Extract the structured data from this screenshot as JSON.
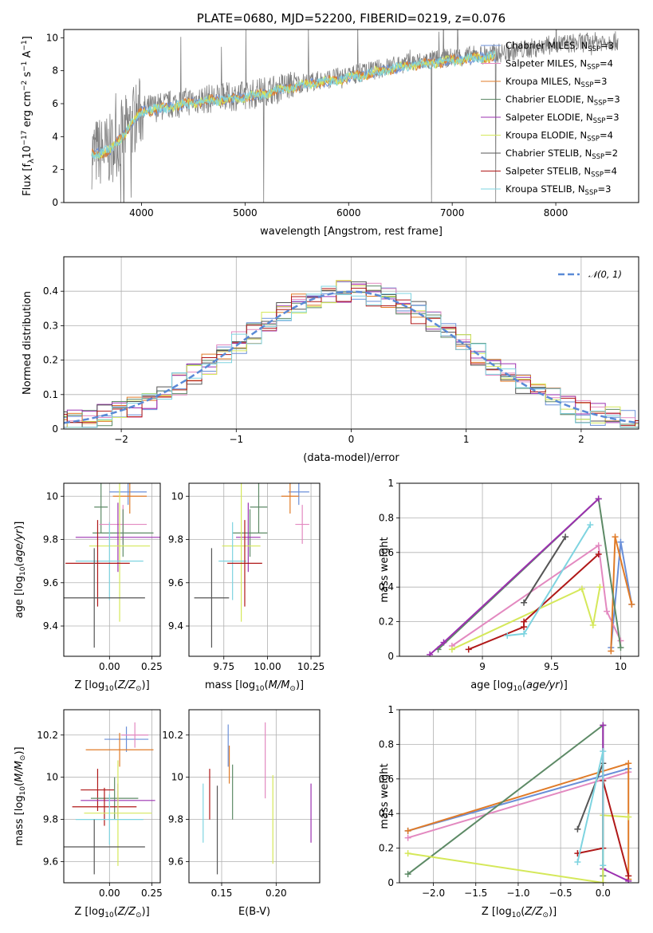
{
  "colors": {
    "Chabrier MILES": "#6a8fd8",
    "Salpeter MILES": "#e389c0",
    "Kroupa MILES": "#e07b28",
    "Chabrier ELODIE": "#5d8a66",
    "Salpeter ELODIE": "#9c30b0",
    "Kroupa ELODIE": "#d5e85a",
    "Chabrier STELIB": "#555555",
    "Salpeter STELIB": "#b01818",
    "Kroupa STELIB": "#7ed4e0"
  },
  "chart_data": [
    {
      "id": "spectrum",
      "type": "line",
      "title": "PLATE=0680, MJD=52200, FIBERID=0219, z=0.076",
      "xlabel": "wavelength [Angstrom, rest frame]",
      "ylabel": "Flux [fλ10⁻¹⁷ erg cm⁻² s⁻¹ A⁻¹]",
      "xlim": [
        3250,
        8800
      ],
      "ylim": [
        0,
        10.5
      ],
      "xticks": [
        4000,
        5000,
        6000,
        7000,
        8000
      ],
      "yticks": [
        0,
        2,
        4,
        6,
        8,
        10
      ],
      "data_color": "#808080",
      "data_continuum": [
        [
          3520,
          3.0
        ],
        [
          3700,
          3.2
        ],
        [
          3900,
          4.8
        ],
        [
          4000,
          5.6
        ],
        [
          4500,
          6.2
        ],
        [
          5000,
          6.5
        ],
        [
          5500,
          7.2
        ],
        [
          6000,
          7.7
        ],
        [
          6500,
          8.4
        ],
        [
          7000,
          8.8
        ],
        [
          7500,
          9.1
        ],
        [
          8000,
          9.6
        ],
        [
          8500,
          9.8
        ],
        [
          8600,
          9.8
        ]
      ],
      "data_dips": [
        [
          3800,
          0.0
        ],
        [
          3830,
          0.0
        ],
        [
          3900,
          0.3
        ],
        [
          5180,
          0.0
        ],
        [
          6800,
          0.0
        ],
        [
          7420,
          0.0
        ]
      ],
      "model_color_list": [
        "#6a8fd8",
        "#e07b28",
        "#d5e85a",
        "#7ed4e0"
      ],
      "model_range": [
        3520,
        7420
      ],
      "legend": [
        {
          "label": "Chabrier MILES, N",
          "sub": "SSP",
          "tail": "=3"
        },
        {
          "label": "Salpeter MILES, N",
          "sub": "SSP",
          "tail": "=4"
        },
        {
          "label": "Kroupa MILES, N",
          "sub": "SSP",
          "tail": "=3"
        },
        {
          "label": "Chabrier ELODIE, N",
          "sub": "SSP",
          "tail": "=3"
        },
        {
          "label": "Salpeter ELODIE, N",
          "sub": "SSP",
          "tail": "=3"
        },
        {
          "label": "Kroupa ELODIE, N",
          "sub": "SSP",
          "tail": "=4"
        },
        {
          "label": "Chabrier STELIB, N",
          "sub": "SSP",
          "tail": "=2"
        },
        {
          "label": "Salpeter STELIB, N",
          "sub": "SSP",
          "tail": "=4"
        },
        {
          "label": "Kroupa STELIB, N",
          "sub": "SSP",
          "tail": "=3"
        }
      ],
      "legend_placement": "right"
    },
    {
      "id": "residuals",
      "type": "histogram",
      "xlabel": "(data-model)/error",
      "ylabel": "Normed distribution",
      "xlim": [
        -2.5,
        2.5
      ],
      "ylim": [
        0,
        0.5
      ],
      "xticks": [
        -2,
        -1,
        0,
        1,
        2
      ],
      "yticks": [
        0.0,
        0.1,
        0.2,
        0.3,
        0.4
      ],
      "grid": true,
      "gaussian_label": "𝒩(0, 1)",
      "gaussian_color": "#5a8ad6",
      "legend_placement": "top-right"
    },
    {
      "id": "age-vs-Z",
      "type": "errorbar",
      "xlabel": "Z [log₁₀(Z/Z⊙)]",
      "ylabel": "age  [log₁₀(age/yr)]",
      "xlim": [
        -0.27,
        0.3
      ],
      "ylim": [
        9.26,
        10.06
      ],
      "xticks": [
        0.0,
        0.25
      ],
      "xticklabels": [
        "0.00",
        "0.25"
      ],
      "yticks": [
        9.4,
        9.6,
        9.8,
        10.0
      ],
      "grid": true,
      "points": [
        {
          "series": "Chabrier MILES",
          "x": 0.11,
          "xerr": 0.11,
          "y": 10.02,
          "yerr": 0.06
        },
        {
          "series": "Kroupa MILES",
          "x": 0.12,
          "xerr": 0.1,
          "y": 10.0,
          "yerr": 0.08
        },
        {
          "series": "Chabrier ELODIE",
          "x": -0.05,
          "xerr": 0.04,
          "y": 9.95,
          "yerr": 0.12
        },
        {
          "series": "Salpeter MILES",
          "x": 0.08,
          "xerr": 0.14,
          "y": 9.87,
          "yerr": 0.09
        },
        {
          "series": "Chabrier ELODIE",
          "x": 0.08,
          "xerr": 0.18,
          "y": 9.83,
          "yerr": 0.11
        },
        {
          "series": "Salpeter ELODIE",
          "x": 0.05,
          "xerr": 0.25,
          "y": 9.81,
          "yerr": 0.16
        },
        {
          "series": "Kroupa ELODIE",
          "x": 0.06,
          "xerr": 0.18,
          "y": 9.77,
          "yerr": 0.35
        },
        {
          "series": "Kroupa STELIB",
          "x": 0.0,
          "xerr": 0.2,
          "y": 9.7,
          "yerr": 0.18
        },
        {
          "series": "Salpeter STELIB",
          "x": -0.07,
          "xerr": 0.19,
          "y": 9.69,
          "yerr": 0.2
        },
        {
          "series": "Chabrier STELIB",
          "x": -0.09,
          "xerr": 0.3,
          "y": 9.53,
          "yerr": 0.23
        }
      ]
    },
    {
      "id": "age-vs-mass",
      "type": "errorbar",
      "xlabel": "mass [log₁₀(M/M⊙)]",
      "ylabel": "",
      "xlim": [
        9.55,
        10.3
      ],
      "ylim": [
        9.26,
        10.06
      ],
      "xticks": [
        9.75,
        10.0,
        10.25
      ],
      "xticklabels": [
        "9.75",
        "10.00",
        "10.25"
      ],
      "yticks": [
        9.4,
        9.6,
        9.8,
        10.0
      ],
      "grid": true,
      "points": [
        {
          "series": "Chabrier MILES",
          "x": 10.18,
          "xerr": 0.06,
          "y": 10.02,
          "yerr": 0.06
        },
        {
          "series": "Kroupa MILES",
          "x": 10.13,
          "xerr": 0.05,
          "y": 10.0,
          "yerr": 0.08
        },
        {
          "series": "Chabrier ELODIE",
          "x": 9.95,
          "xerr": 0.05,
          "y": 9.95,
          "yerr": 0.12
        },
        {
          "series": "Salpeter MILES",
          "x": 10.2,
          "xerr": 0.04,
          "y": 9.87,
          "yerr": 0.09
        },
        {
          "series": "Chabrier ELODIE",
          "x": 9.9,
          "xerr": 0.1,
          "y": 9.83,
          "yerr": 0.11
        },
        {
          "series": "Salpeter ELODIE",
          "x": 9.89,
          "xerr": 0.07,
          "y": 9.81,
          "yerr": 0.16
        },
        {
          "series": "Kroupa ELODIE",
          "x": 9.85,
          "xerr": 0.11,
          "y": 9.77,
          "yerr": 0.35
        },
        {
          "series": "Kroupa STELIB",
          "x": 9.8,
          "xerr": 0.08,
          "y": 9.7,
          "yerr": 0.18
        },
        {
          "series": "Salpeter STELIB",
          "x": 9.87,
          "xerr": 0.1,
          "y": 9.69,
          "yerr": 0.2
        },
        {
          "series": "Chabrier STELIB",
          "x": 9.68,
          "xerr": 0.1,
          "y": 9.53,
          "yerr": 0.23
        }
      ]
    },
    {
      "id": "weight-vs-age",
      "type": "line",
      "xlabel": "age  [log₁₀(age/yr)]",
      "ylabel": "mass weight",
      "xlim": [
        8.4,
        10.13
      ],
      "ylim": [
        0,
        1.0
      ],
      "xticks": [
        9.0,
        9.5,
        10.0
      ],
      "yticks": [
        0.0,
        0.2,
        0.4,
        0.6,
        0.8,
        1.0
      ],
      "grid": true,
      "series": [
        {
          "name": "Chabrier MILES",
          "x": [
            9.93,
            10.0,
            10.08
          ],
          "y": [
            0.05,
            0.66,
            0.3
          ]
        },
        {
          "name": "Salpeter MILES",
          "x": [
            8.78,
            9.84,
            9.9,
            10.0
          ],
          "y": [
            0.06,
            0.64,
            0.26,
            0.09
          ]
        },
        {
          "name": "Kroupa MILES",
          "x": [
            9.93,
            9.96,
            10.08
          ],
          "y": [
            0.03,
            0.69,
            0.3
          ]
        },
        {
          "name": "Chabrier ELODIE",
          "x": [
            8.68,
            9.84,
            10.0
          ],
          "y": [
            0.04,
            0.91,
            0.05
          ]
        },
        {
          "name": "Salpeter ELODIE",
          "x": [
            8.62,
            8.72,
            9.84
          ],
          "y": [
            0.01,
            0.08,
            0.91
          ]
        },
        {
          "name": "Kroupa ELODIE",
          "x": [
            8.78,
            9.72,
            9.8,
            9.85
          ],
          "y": [
            0.04,
            0.39,
            0.18,
            0.4
          ]
        },
        {
          "name": "Chabrier STELIB",
          "x": [
            9.3,
            9.6
          ],
          "y": [
            0.31,
            0.69
          ]
        },
        {
          "name": "Salpeter STELIB",
          "x": [
            8.9,
            9.3,
            9.3,
            9.84
          ],
          "y": [
            0.04,
            0.17,
            0.2,
            0.59
          ]
        },
        {
          "name": "Kroupa STELIB",
          "x": [
            9.18,
            9.3,
            9.78
          ],
          "y": [
            0.12,
            0.13,
            0.76
          ]
        }
      ]
    },
    {
      "id": "mass-vs-Z",
      "type": "errorbar",
      "xlabel": "Z [log₁₀(Z/Z⊙)]",
      "ylabel": "mass [log₁₀(M/M⊙)]",
      "xlim": [
        -0.27,
        0.3
      ],
      "ylim": [
        9.5,
        10.32
      ],
      "xticks": [
        0.0,
        0.25
      ],
      "xticklabels": [
        "0.00",
        "0.25"
      ],
      "yticks": [
        9.6,
        9.8,
        10.0,
        10.2
      ],
      "grid": true,
      "points": [
        {
          "series": "Chabrier MILES",
          "x": 0.1,
          "xerr": 0.13,
          "y": 10.18,
          "yerr": 0.06
        },
        {
          "series": "Salpeter MILES",
          "x": 0.15,
          "xerr": 0.08,
          "y": 10.2,
          "yerr": 0.06
        },
        {
          "series": "Kroupa MILES",
          "x": 0.06,
          "xerr": 0.2,
          "y": 10.13,
          "yerr": 0.08
        },
        {
          "series": "Salpeter STELIB",
          "x": -0.07,
          "xerr": 0.1,
          "y": 9.94,
          "yerr": 0.1
        },
        {
          "series": "Chabrier ELODIE",
          "x": 0.03,
          "xerr": 0.14,
          "y": 9.9,
          "yerr": 0.1
        },
        {
          "series": "Salpeter ELODIE",
          "x": 0.05,
          "xerr": 0.22,
          "y": 9.89,
          "yerr": 0.08
        },
        {
          "series": "Salpeter STELIB",
          "x": -0.03,
          "xerr": 0.19,
          "y": 9.86,
          "yerr": 0.09
        },
        {
          "series": "Kroupa ELODIE",
          "x": 0.05,
          "xerr": 0.2,
          "y": 9.83,
          "yerr": 0.25
        },
        {
          "series": "Kroupa STELIB",
          "x": 0.0,
          "xerr": 0.2,
          "y": 9.8,
          "yerr": 0.12
        },
        {
          "series": "Chabrier STELIB",
          "x": -0.09,
          "xerr": 0.3,
          "y": 9.67,
          "yerr": 0.13
        }
      ]
    },
    {
      "id": "mass-vs-ebv",
      "type": "errorbar",
      "xlabel": "E(B-V)",
      "ylabel": "",
      "xlim": [
        0.12,
        0.24
      ],
      "ylim": [
        9.5,
        10.32
      ],
      "xticks": [
        0.15,
        0.2
      ],
      "xticklabels": [
        "0.15",
        "0.20"
      ],
      "yticks": [
        9.6,
        9.8,
        10.0,
        10.2
      ],
      "grid": true,
      "points": [
        {
          "series": "Kroupa STELIB",
          "x": 0.133,
          "xerr": 0,
          "y": 9.83,
          "yerr": 0.14
        },
        {
          "series": "Salpeter STELIB",
          "x": 0.139,
          "xerr": 0,
          "y": 9.92,
          "yerr": 0.12
        },
        {
          "series": "Chabrier STELIB",
          "x": 0.146,
          "xerr": 0,
          "y": 9.75,
          "yerr": 0.21
        },
        {
          "series": "Chabrier MILES",
          "x": 0.156,
          "xerr": 0,
          "y": 10.15,
          "yerr": 0.1
        },
        {
          "series": "Kroupa MILES",
          "x": 0.157,
          "xerr": 0,
          "y": 10.06,
          "yerr": 0.09
        },
        {
          "series": "Chabrier ELODIE",
          "x": 0.16,
          "xerr": 0,
          "y": 9.93,
          "yerr": 0.13
        },
        {
          "series": "Salpeter MILES",
          "x": 0.19,
          "xerr": 0,
          "y": 10.08,
          "yerr": 0.18
        },
        {
          "series": "Kroupa ELODIE",
          "x": 0.197,
          "xerr": 0,
          "y": 9.8,
          "yerr": 0.21
        },
        {
          "series": "Salpeter ELODIE",
          "x": 0.232,
          "xerr": 0,
          "y": 9.83,
          "yerr": 0.14
        }
      ]
    },
    {
      "id": "weight-vs-Z",
      "type": "line",
      "xlabel": "Z [log₁₀(Z/Z⊙)]",
      "ylabel": "mass weight",
      "xlim": [
        -2.4,
        0.42
      ],
      "ylim": [
        0,
        1.0
      ],
      "xticks": [
        -2.0,
        -1.5,
        -1.0,
        -0.5,
        0.0
      ],
      "xticklabels": [
        "−2.0",
        "−1.5",
        "−1.0",
        "−0.5",
        "0.0"
      ],
      "yticks": [
        0.0,
        0.2,
        0.4,
        0.6,
        0.8,
        1.0
      ],
      "grid": true,
      "series": [
        {
          "name": "Chabrier MILES",
          "x": [
            -2.3,
            0.3
          ],
          "y": [
            0.3,
            0.66
          ]
        },
        {
          "name": "Salpeter MILES",
          "x": [
            -2.3,
            0.3
          ],
          "y": [
            0.26,
            0.64
          ]
        },
        {
          "name": "Kroupa MILES",
          "x": [
            -2.3,
            0.3,
            0.3
          ],
          "y": [
            0.3,
            0.69,
            0.02
          ]
        },
        {
          "name": "Chabrier ELODIE",
          "x": [
            -2.3,
            0.0,
            0.0
          ],
          "y": [
            0.05,
            0.91,
            0.04
          ]
        },
        {
          "name": "Salpeter ELODIE",
          "x": [
            0.0,
            0.0,
            0.3
          ],
          "y": [
            0.91,
            0.08,
            0.01
          ]
        },
        {
          "name": "Kroupa ELODIE",
          "x": [
            -2.3,
            0.0,
            0.0,
            0.3
          ],
          "y": [
            0.17,
            0.0,
            0.39,
            0.38
          ]
        },
        {
          "name": "Chabrier STELIB",
          "x": [
            -0.3,
            0.0
          ],
          "y": [
            0.31,
            0.69
          ]
        },
        {
          "name": "Salpeter STELIB",
          "x": [
            -0.3,
            0.0,
            0.0,
            0.3
          ],
          "y": [
            0.17,
            0.2,
            0.59,
            0.04
          ]
        },
        {
          "name": "Kroupa STELIB",
          "x": [
            -0.3,
            0.0,
            0.0
          ],
          "y": [
            0.12,
            0.76,
            0.1
          ]
        }
      ]
    }
  ]
}
